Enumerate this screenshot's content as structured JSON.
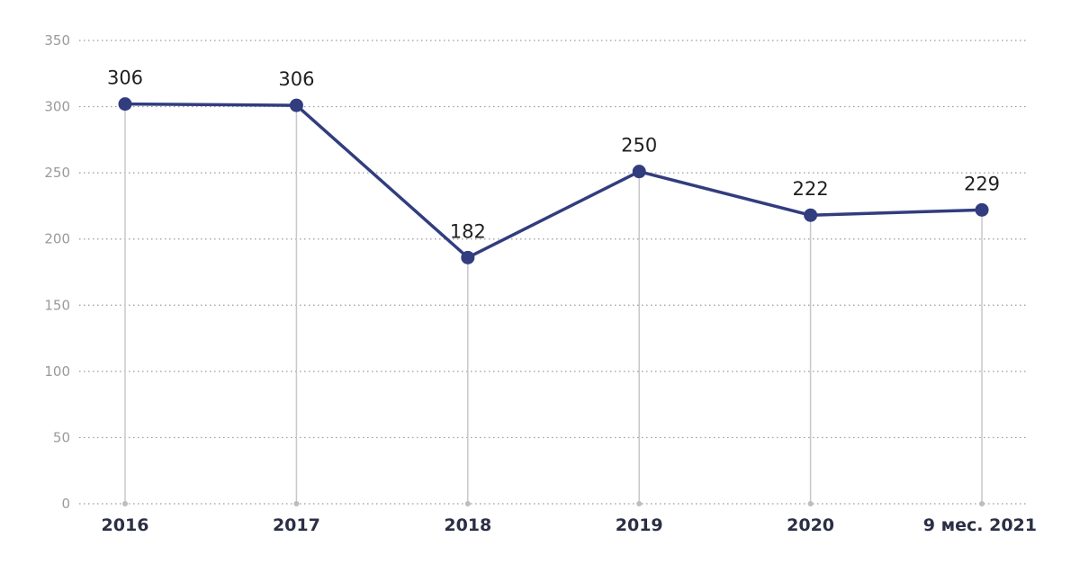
{
  "chart_data": {
    "type": "line",
    "title": "",
    "xlabel": "",
    "ylabel": "",
    "categories": [
      "2016",
      "2017",
      "2018",
      "2019",
      "2020",
      "9 мес. 2021"
    ],
    "series": [
      {
        "values": [
          306,
          306,
          182,
          250,
          222,
          229
        ]
      }
    ],
    "plotted_values": [
      302,
      301,
      186,
      251,
      218,
      222
    ],
    "ylim": [
      0,
      350
    ],
    "yticks": [
      0,
      50,
      100,
      150,
      200,
      250,
      300,
      350
    ],
    "grid": true,
    "legend": "none",
    "colors": {
      "line": "#313d7e",
      "marker": "#313d7e",
      "grid": "#9a9a9a",
      "drop_line": "#c8c8c8"
    }
  }
}
